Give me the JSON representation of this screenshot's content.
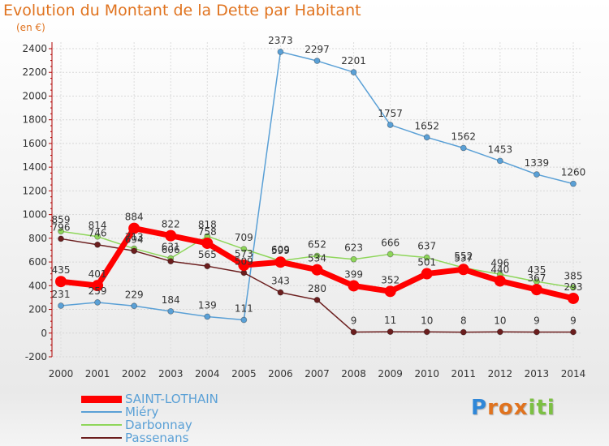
{
  "title": "Evolution du Montant de la Dette par Habitant",
  "subtitle": "(en €)",
  "brand": {
    "letters": [
      "P",
      "r",
      "o",
      "x",
      "i",
      "t",
      "i"
    ],
    "colors": [
      "#2f87d8",
      "#e0731f",
      "#e0731f",
      "#e0731f",
      "#7cc043",
      "#7cc043",
      "#7cc043"
    ]
  },
  "chart_data": {
    "type": "line",
    "x": [
      "2000",
      "2001",
      "2002",
      "2003",
      "2004",
      "2005",
      "2006",
      "2007",
      "2008",
      "2009",
      "2010",
      "2011",
      "2012",
      "2013",
      "2014"
    ],
    "ylim": [
      -200,
      2400
    ],
    "yticks": [
      -200,
      0,
      200,
      400,
      600,
      800,
      1000,
      1200,
      1400,
      1600,
      1800,
      2000,
      2200,
      2400
    ],
    "grid": true,
    "legend_position": "bottom-left",
    "series": [
      {
        "name": "SAINT-LOTHAIN",
        "color": "#ff0000",
        "values": [
          435,
          401,
          884,
          822,
          758,
          573,
          599,
          534,
          399,
          352,
          501,
          537,
          440,
          367,
          293
        ]
      },
      {
        "name": "Miéry",
        "color": "#5aa0d6",
        "values": [
          231,
          259,
          229,
          184,
          139,
          111,
          2373,
          2297,
          2201,
          1757,
          1652,
          1562,
          1453,
          1339,
          1260
        ]
      },
      {
        "name": "Darbonnay",
        "color": "#8ed65a",
        "values": [
          859,
          814,
          713,
          631,
          818,
          709,
          609,
          652,
          623,
          666,
          637,
          552,
          496,
          435,
          385
        ]
      },
      {
        "name": "Passenans",
        "color": "#6b1e1e",
        "values": [
          796,
          746,
          694,
          606,
          565,
          509,
          343,
          280,
          9,
          11,
          10,
          8,
          10,
          9,
          9
        ]
      }
    ]
  }
}
